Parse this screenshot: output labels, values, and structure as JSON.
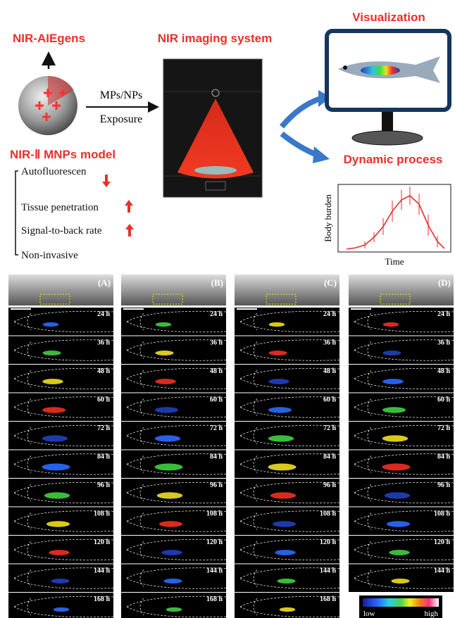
{
  "header": {
    "aiegens": "NIR-AIEgens",
    "system": "NIR imaging system",
    "visualization": "Visualization",
    "mps": "MPs/NPs",
    "exposure": "Exposure",
    "model": "NIR-Ⅱ MNPs model",
    "dynamic": "Dynamic process"
  },
  "features": [
    "Autofluorescen",
    "Tissue penetration",
    "Signal-to-back rate",
    "Non-invasive"
  ],
  "plot": {
    "ylabel": "Body burden",
    "xlabel": "Time"
  },
  "panels": [
    {
      "label": "(A)",
      "times": [
        "24 h",
        "36 h",
        "48 h",
        "60 h",
        "72 h",
        "84 h",
        "96 h",
        "108 h",
        "120 h",
        "144 h",
        "168 h"
      ]
    },
    {
      "label": "(B)",
      "times": [
        "24 h",
        "36 h",
        "48 h",
        "60 h",
        "72 h",
        "84 h",
        "96 h",
        "108 h",
        "120 h",
        "144 h",
        "168 h"
      ]
    },
    {
      "label": "(C)",
      "times": [
        "24 h",
        "36 h",
        "48 h",
        "60 h",
        "72 h",
        "84 h",
        "96 h",
        "108 h",
        "120 h",
        "144 h",
        "168 h"
      ]
    },
    {
      "label": "(D)",
      "times": [
        "24 h",
        "36 h",
        "48 h",
        "60 h",
        "72 h",
        "84 h",
        "96 h",
        "108 h",
        "120 h",
        "144 h"
      ]
    }
  ],
  "colorbar": {
    "low": "low",
    "high": "high"
  }
}
